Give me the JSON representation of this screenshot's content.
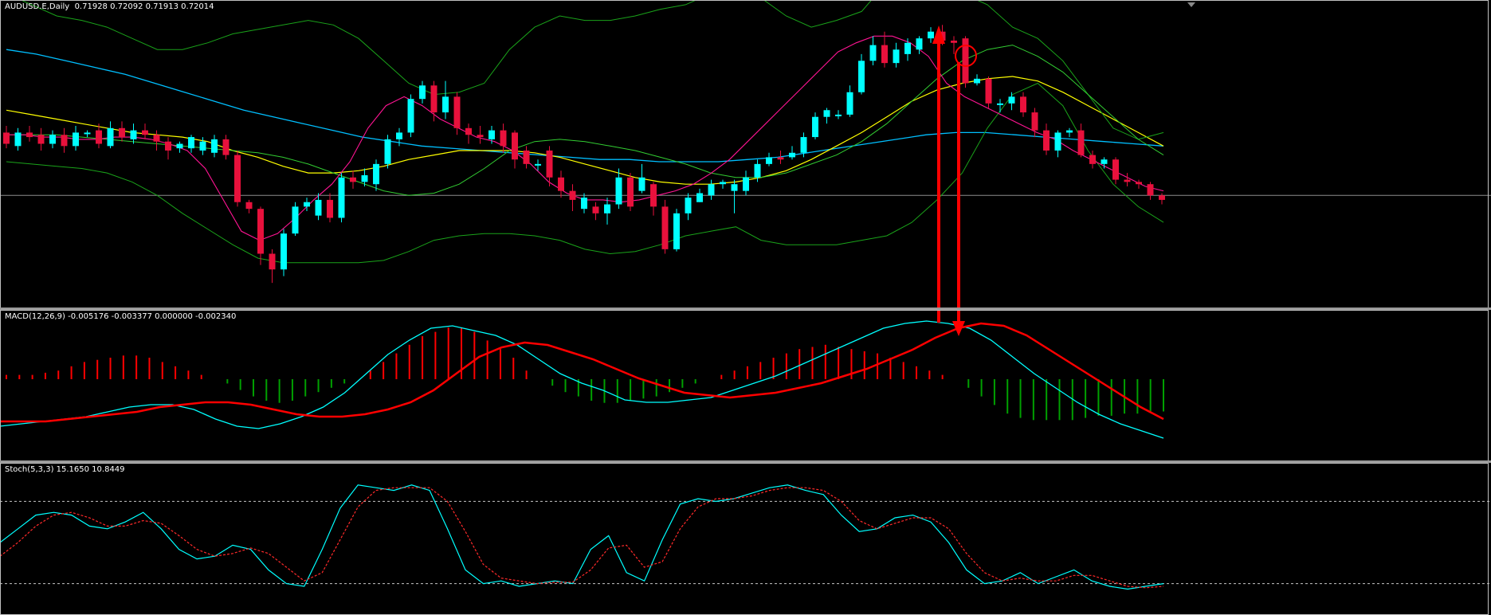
{
  "colors": {
    "background": "#000000",
    "bull_candle": "#00ffff",
    "bear_candle": "#e8113c",
    "bollinger": "#1aa31a",
    "ma_fast": "#ff1493",
    "ma_medium": "#32cd32",
    "ma_slow": "#ffff00",
    "ma_long": "#00bfff",
    "macd_hist_pos": "#ff0000",
    "macd_hist_neg": "#00a000",
    "macd_main": "#00ffff",
    "macd_signal": "#ff0000",
    "stoch_main": "#00ffff",
    "stoch_signal": "#ff2a2a",
    "annotation": "#ff0000"
  },
  "price_pane": {
    "label": "AUDUSD.E,Daily  0.71928 0.72092 0.71913 0.72014"
  },
  "macd_pane": {
    "label": "MACD(12,26,9) -0.005176 -0.003377 0.000000 -0.002340"
  },
  "stoch_pane": {
    "label": "Stoch(5,3,3) 15.1650 10.8449"
  },
  "chart_data": [
    {
      "type": "candlestick",
      "symbol": "AUDUSD.E",
      "timeframe": "Daily",
      "header_values": [
        0.71928,
        0.72092,
        0.71913,
        0.72014
      ],
      "candles": [
        {
          "o": 78,
          "c": 73,
          "h": 81,
          "l": 71
        },
        {
          "o": 72,
          "c": 78,
          "h": 80,
          "l": 70
        },
        {
          "o": 78,
          "c": 76,
          "h": 81,
          "l": 74
        },
        {
          "o": 77,
          "c": 73,
          "h": 80,
          "l": 70
        },
        {
          "o": 73,
          "c": 77,
          "h": 79,
          "l": 71
        },
        {
          "o": 77,
          "c": 72,
          "h": 80,
          "l": 69
        },
        {
          "o": 72,
          "c": 78,
          "h": 81,
          "l": 70
        },
        {
          "o": 78,
          "c": 78,
          "h": 79,
          "l": 76
        },
        {
          "o": 79,
          "c": 73,
          "h": 82,
          "l": 71
        },
        {
          "o": 72,
          "c": 80,
          "h": 83,
          "l": 71
        },
        {
          "o": 80,
          "c": 76,
          "h": 83,
          "l": 74
        },
        {
          "o": 75,
          "c": 79,
          "h": 82,
          "l": 73
        },
        {
          "o": 79,
          "c": 77,
          "h": 82,
          "l": 75
        },
        {
          "o": 77,
          "c": 74,
          "h": 79,
          "l": 70
        },
        {
          "o": 74,
          "c": 70,
          "h": 76,
          "l": 66
        },
        {
          "o": 71,
          "c": 73,
          "h": 74,
          "l": 69
        },
        {
          "o": 71,
          "c": 76,
          "h": 77,
          "l": 69
        },
        {
          "o": 70,
          "c": 74,
          "h": 76,
          "l": 68
        },
        {
          "o": 69,
          "c": 75,
          "h": 77,
          "l": 67
        },
        {
          "o": 75,
          "c": 68,
          "h": 77,
          "l": 66
        },
        {
          "o": 68,
          "c": 47,
          "h": 70,
          "l": 45
        },
        {
          "o": 47,
          "c": 44,
          "h": 48,
          "l": 42
        },
        {
          "o": 44,
          "c": 24,
          "h": 45,
          "l": 19
        },
        {
          "o": 24,
          "c": 17,
          "h": 26,
          "l": 11
        },
        {
          "o": 17,
          "c": 33,
          "h": 35,
          "l": 14
        },
        {
          "o": 33,
          "c": 45,
          "h": 47,
          "l": 32
        },
        {
          "o": 45,
          "c": 47,
          "h": 49,
          "l": 43
        },
        {
          "o": 41,
          "c": 48,
          "h": 51,
          "l": 39
        },
        {
          "o": 48,
          "c": 40,
          "h": 51,
          "l": 38
        },
        {
          "o": 40,
          "c": 58,
          "h": 60,
          "l": 38
        },
        {
          "o": 58,
          "c": 56,
          "h": 61,
          "l": 53
        },
        {
          "o": 56,
          "c": 59,
          "h": 62,
          "l": 54
        },
        {
          "o": 55,
          "c": 64,
          "h": 66,
          "l": 52
        },
        {
          "o": 64,
          "c": 75,
          "h": 77,
          "l": 62
        },
        {
          "o": 75,
          "c": 78,
          "h": 80,
          "l": 72
        },
        {
          "o": 78,
          "c": 93,
          "h": 95,
          "l": 76
        },
        {
          "o": 93,
          "c": 99,
          "h": 101,
          "l": 91
        },
        {
          "o": 99,
          "c": 87,
          "h": 101,
          "l": 83
        },
        {
          "o": 87,
          "c": 94,
          "h": 101,
          "l": 84
        },
        {
          "o": 94,
          "c": 80,
          "h": 96,
          "l": 77
        },
        {
          "o": 80,
          "c": 77,
          "h": 82,
          "l": 73
        },
        {
          "o": 77,
          "c": 76,
          "h": 81,
          "l": 73
        },
        {
          "o": 75,
          "c": 79,
          "h": 81,
          "l": 73
        },
        {
          "o": 79,
          "c": 72,
          "h": 82,
          "l": 69
        },
        {
          "o": 78,
          "c": 66,
          "h": 79,
          "l": 62
        },
        {
          "o": 70,
          "c": 64,
          "h": 72,
          "l": 62
        },
        {
          "o": 64,
          "c": 64,
          "h": 66,
          "l": 61
        },
        {
          "o": 70,
          "c": 58,
          "h": 72,
          "l": 54
        },
        {
          "o": 58,
          "c": 52,
          "h": 61,
          "l": 49
        },
        {
          "o": 52,
          "c": 48,
          "h": 55,
          "l": 43
        },
        {
          "o": 44,
          "c": 49,
          "h": 51,
          "l": 42
        },
        {
          "o": 45,
          "c": 42,
          "h": 47,
          "l": 39
        },
        {
          "o": 42,
          "c": 46,
          "h": 49,
          "l": 37
        },
        {
          "o": 46,
          "c": 58,
          "h": 62,
          "l": 44
        },
        {
          "o": 58,
          "c": 45,
          "h": 60,
          "l": 43
        },
        {
          "o": 52,
          "c": 58,
          "h": 64,
          "l": 51
        },
        {
          "o": 55,
          "c": 45,
          "h": 56,
          "l": 41
        },
        {
          "o": 45,
          "c": 26,
          "h": 48,
          "l": 24
        },
        {
          "o": 26,
          "c": 42,
          "h": 44,
          "l": 25
        },
        {
          "o": 42,
          "c": 49,
          "h": 51,
          "l": 39
        },
        {
          "o": 47,
          "c": 51,
          "h": 53,
          "l": 47
        },
        {
          "o": 50,
          "c": 55,
          "h": 57,
          "l": 48
        },
        {
          "o": 55,
          "c": 56,
          "h": 57,
          "l": 53
        },
        {
          "o": 52,
          "c": 55,
          "h": 57,
          "l": 42
        },
        {
          "o": 52,
          "c": 58,
          "h": 61,
          "l": 50
        },
        {
          "o": 58,
          "c": 64,
          "h": 66,
          "l": 56
        },
        {
          "o": 64,
          "c": 67,
          "h": 69,
          "l": 63
        },
        {
          "o": 67,
          "c": 66,
          "h": 70,
          "l": 64
        },
        {
          "o": 67,
          "c": 69,
          "h": 72,
          "l": 66
        },
        {
          "o": 69,
          "c": 76,
          "h": 78,
          "l": 67
        },
        {
          "o": 76,
          "c": 85,
          "h": 87,
          "l": 75
        },
        {
          "o": 85,
          "c": 88,
          "h": 89,
          "l": 82
        },
        {
          "o": 86,
          "c": 86,
          "h": 88,
          "l": 84
        },
        {
          "o": 86,
          "c": 96,
          "h": 99,
          "l": 85
        },
        {
          "o": 96,
          "c": 110,
          "h": 113,
          "l": 95
        },
        {
          "o": 110,
          "c": 117,
          "h": 121,
          "l": 108
        },
        {
          "o": 117,
          "c": 109,
          "h": 123,
          "l": 107
        },
        {
          "o": 109,
          "c": 115,
          "h": 118,
          "l": 107
        },
        {
          "o": 113,
          "c": 118,
          "h": 120,
          "l": 110
        },
        {
          "o": 115,
          "c": 120,
          "h": 121,
          "l": 113
        },
        {
          "o": 120,
          "c": 123,
          "h": 125,
          "l": 118
        },
        {
          "o": 123,
          "c": 119,
          "h": 126,
          "l": 117
        },
        {
          "o": 119,
          "c": 118,
          "h": 121,
          "l": 113
        },
        {
          "o": 120,
          "c": 100,
          "h": 121,
          "l": 98
        },
        {
          "o": 100,
          "c": 102,
          "h": 104,
          "l": 99
        },
        {
          "o": 102,
          "c": 91,
          "h": 103,
          "l": 89
        },
        {
          "o": 91,
          "c": 91,
          "h": 93,
          "l": 87
        },
        {
          "o": 91,
          "c": 94,
          "h": 96,
          "l": 88
        },
        {
          "o": 94,
          "c": 87,
          "h": 96,
          "l": 85
        },
        {
          "o": 87,
          "c": 79,
          "h": 89,
          "l": 76
        },
        {
          "o": 79,
          "c": 70,
          "h": 82,
          "l": 68
        },
        {
          "o": 70,
          "c": 78,
          "h": 79,
          "l": 67
        },
        {
          "o": 78,
          "c": 79,
          "h": 80,
          "l": 76
        },
        {
          "o": 79,
          "c": 68,
          "h": 82,
          "l": 67
        },
        {
          "o": 68,
          "c": 64,
          "h": 70,
          "l": 62
        },
        {
          "o": 64,
          "c": 66,
          "h": 67,
          "l": 62
        },
        {
          "o": 66,
          "c": 57,
          "h": 67,
          "l": 55
        },
        {
          "o": 57,
          "c": 56,
          "h": 60,
          "l": 54
        },
        {
          "o": 56,
          "c": 55,
          "h": 57,
          "l": 53
        },
        {
          "o": 55,
          "c": 50,
          "h": 56,
          "l": 48
        },
        {
          "o": 50,
          "c": 48,
          "h": 51,
          "l": 46
        }
      ],
      "horizontal_line": 50,
      "bollinger_upper": [
        140,
        135,
        130,
        128,
        125,
        120,
        115,
        115,
        118,
        122,
        124,
        126,
        128,
        126,
        120,
        110,
        100,
        95,
        96,
        100,
        115,
        125,
        130,
        128,
        128,
        130,
        133,
        135,
        140,
        142,
        138,
        130,
        125,
        128,
        132,
        145,
        150,
        148,
        140,
        135,
        125,
        120,
        110,
        95,
        80,
        75,
        78
      ],
      "bollinger_middle": [
        77,
        77,
        77,
        76,
        75,
        74,
        73,
        72,
        71,
        70,
        69,
        67,
        64,
        60,
        56,
        52,
        50,
        51,
        55,
        62,
        70,
        74,
        75,
        74,
        72,
        70,
        67,
        64,
        60,
        58,
        58,
        60,
        64,
        68,
        74,
        82,
        92,
        102,
        110,
        115,
        117,
        112,
        105,
        95,
        85,
        75,
        68
      ],
      "bollinger_lower": [
        65,
        64,
        63,
        62,
        60,
        56,
        50,
        42,
        35,
        28,
        22,
        20,
        20,
        20,
        20,
        21,
        25,
        30,
        32,
        33,
        33,
        32,
        30,
        26,
        24,
        25,
        28,
        32,
        34,
        36,
        30,
        28,
        28,
        28,
        30,
        32,
        38,
        48,
        60,
        80,
        95,
        100,
        90,
        70,
        55,
        45,
        38
      ],
      "ma_fast": [
        77,
        77,
        76,
        76,
        75,
        75,
        76,
        76,
        75,
        73,
        70,
        62,
        48,
        34,
        30,
        33,
        40,
        48,
        55,
        65,
        80,
        90,
        94,
        90,
        84,
        80,
        76,
        74,
        70,
        64,
        56,
        51,
        48,
        48,
        47,
        48,
        50,
        52,
        55,
        60,
        66,
        74,
        82,
        90,
        98,
        106,
        114,
        118,
        121,
        121,
        118,
        112,
        100,
        94,
        90,
        86,
        82,
        78,
        75,
        70,
        66,
        62,
        58,
        54,
        52
      ],
      "ma_medium": [
        76,
        75,
        74,
        73,
        72,
        71,
        70,
        69,
        67,
        64,
        60,
        55,
        50,
        45,
        45,
        48,
        53,
        60,
        68,
        73,
        76,
        76,
        75,
        73,
        70,
        67,
        64,
        60,
        57,
        54,
        52,
        51,
        52,
        55,
        60,
        66,
        74,
        82,
        90,
        98,
        106,
        112,
        115,
        115,
        113,
        108,
        100,
        92,
        84,
        76,
        70,
        64,
        58,
        54
      ],
      "ma_slow": [
        88,
        86,
        84,
        82,
        80,
        78,
        77,
        76,
        74,
        70,
        67,
        63,
        60,
        60,
        61,
        63,
        66,
        68,
        70,
        70,
        70,
        69,
        67,
        64,
        61,
        58,
        56,
        55,
        55,
        56,
        58,
        61,
        66,
        72,
        78,
        85,
        92,
        97,
        100,
        102,
        103,
        101,
        96,
        90,
        84,
        78,
        72
      ],
      "ma_long": [
        115,
        113,
        110,
        107,
        104,
        100,
        96,
        92,
        88,
        85,
        82,
        79,
        76,
        74,
        72,
        71,
        70,
        69,
        68,
        67,
        66,
        66,
        65,
        65,
        65,
        66,
        67,
        69,
        71,
        73,
        75,
        77,
        78,
        78,
        77,
        76,
        75,
        74,
        73,
        72
      ]
    },
    {
      "type": "bar",
      "name": "MACD(12,26,9)",
      "header_values": [
        -0.005176,
        -0.003377,
        0.0,
        -0.00234
      ],
      "histogram": [
        2,
        2,
        2,
        3,
        4,
        6,
        8,
        9,
        10,
        11,
        11,
        10,
        8,
        6,
        4,
        2,
        0,
        -2,
        -5,
        -8,
        -10,
        -11,
        -10,
        -8,
        -6,
        -4,
        -2,
        0,
        4,
        8,
        12,
        16,
        20,
        22,
        24,
        24,
        22,
        18,
        14,
        10,
        4,
        0,
        -3,
        -6,
        -8,
        -10,
        -11,
        -11,
        -10,
        -9,
        -8,
        -6,
        -4,
        -2,
        0,
        2,
        4,
        6,
        8,
        10,
        12,
        14,
        15,
        16,
        15,
        14,
        13,
        12,
        10,
        8,
        6,
        4,
        2,
        0,
        -4,
        -8,
        -12,
        -16,
        -18,
        -19,
        -19,
        -19,
        -19,
        -18,
        -17,
        -17,
        -16,
        -16,
        -15,
        -15
      ],
      "main": [
        -12,
        -11,
        -10,
        -9,
        -8,
        -6,
        -4,
        -3,
        -3,
        -5,
        -9,
        -12,
        -13,
        -11,
        -8,
        -4,
        2,
        10,
        18,
        24,
        29,
        30,
        28,
        26,
        22,
        16,
        10,
        6,
        3,
        -1,
        -2,
        -2,
        -1,
        0,
        3,
        6,
        9,
        13,
        17,
        21,
        25,
        29,
        31,
        32,
        31,
        29,
        24,
        17,
        10,
        4,
        -2,
        -7,
        -11,
        -14,
        -17
      ],
      "signal": [
        -10,
        -10,
        -10,
        -9,
        -8,
        -7,
        -6,
        -4,
        -3,
        -2,
        -2,
        -3,
        -5,
        -7,
        -8,
        -8,
        -7,
        -5,
        -2,
        3,
        10,
        17,
        21,
        23,
        22,
        19,
        16,
        12,
        8,
        5,
        2,
        1,
        0,
        1,
        2,
        4,
        6,
        9,
        12,
        16,
        20,
        25,
        29,
        31,
        30,
        26,
        20,
        14,
        8,
        2,
        -4,
        -9
      ]
    },
    {
      "type": "line",
      "name": "Stoch(5,3,3)",
      "header_values": [
        15.165,
        10.8449
      ],
      "levels": [
        80,
        20
      ],
      "main": [
        50,
        60,
        70,
        72,
        70,
        62,
        60,
        65,
        72,
        60,
        45,
        38,
        40,
        48,
        45,
        30,
        20,
        18,
        45,
        75,
        92,
        90,
        88,
        92,
        88,
        60,
        30,
        20,
        22,
        18,
        20,
        22,
        20,
        45,
        55,
        28,
        22,
        52,
        78,
        82,
        80,
        82,
        86,
        90,
        92,
        88,
        85,
        70,
        58,
        60,
        68,
        70,
        65,
        50,
        30,
        20,
        22,
        28,
        20,
        25,
        30,
        22,
        18,
        16,
        18,
        20
      ],
      "signal": [
        40,
        50,
        62,
        70,
        72,
        68,
        62,
        62,
        66,
        64,
        55,
        45,
        40,
        42,
        46,
        42,
        32,
        22,
        28,
        52,
        76,
        88,
        90,
        90,
        90,
        80,
        58,
        34,
        24,
        22,
        20,
        21,
        21,
        30,
        46,
        48,
        32,
        36,
        60,
        76,
        82,
        82,
        84,
        88,
        90,
        90,
        88,
        80,
        66,
        60,
        64,
        68,
        68,
        60,
        42,
        28,
        22,
        24,
        22,
        22,
        26,
        26,
        22,
        18,
        17,
        18
      ]
    }
  ]
}
